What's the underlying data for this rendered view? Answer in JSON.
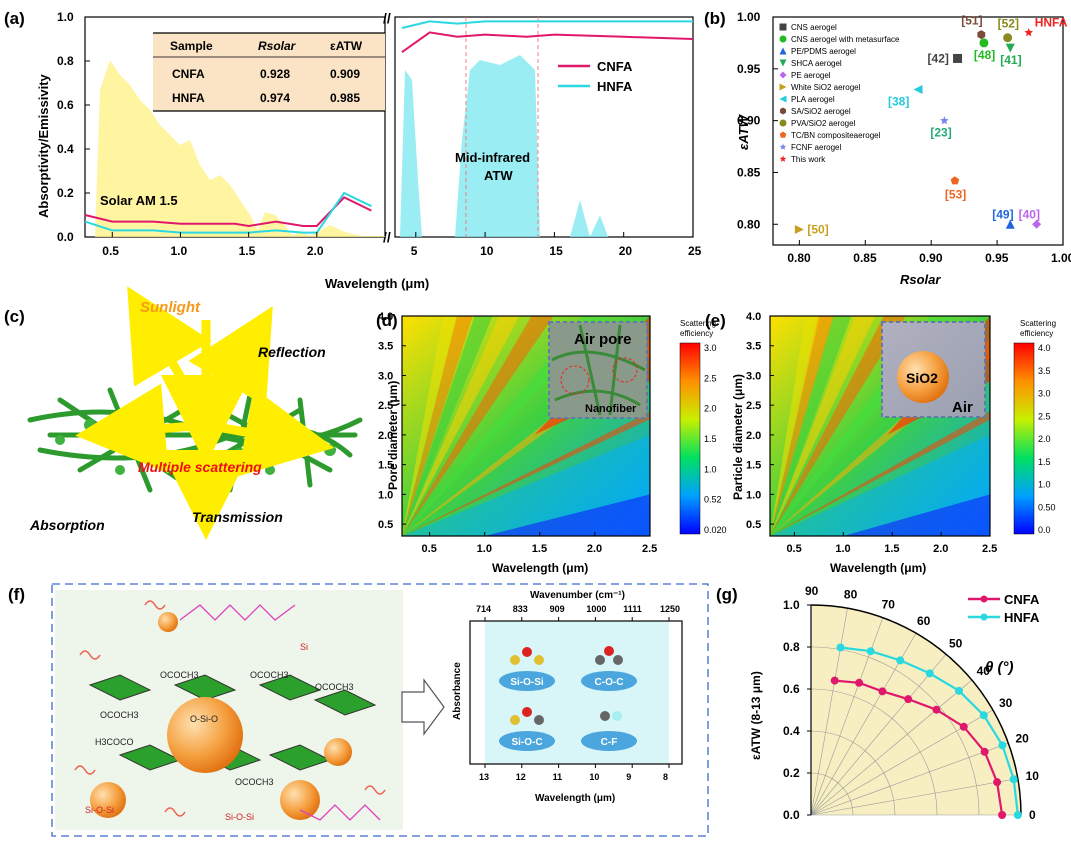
{
  "panels": {
    "a": {
      "label": "(a)",
      "ylabel": "Absorptivity/Emissivity",
      "xlabel": "Wavelength (μm)",
      "yticks": [
        "0.0",
        "0.2",
        "0.4",
        "0.6",
        "0.8",
        "1.0"
      ],
      "xticks_left": [
        "0.5",
        "1.0",
        "1.5",
        "2.0"
      ],
      "xticks_right": [
        "5",
        "10",
        "15",
        "20",
        "25"
      ],
      "solar_label": "Solar AM 1.5",
      "atw_label_1": "Mid-infrared",
      "atw_label_2": "ATW",
      "legend": [
        {
          "name": "CNFA",
          "color": "#e0186c"
        },
        {
          "name": "HNFA",
          "color": "#2ad8e0"
        }
      ],
      "table": {
        "headers": [
          "Sample",
          "Rsolar",
          "εATW"
        ],
        "rows": [
          [
            "CNFA",
            "0.928",
            "0.909"
          ],
          [
            "HNFA",
            "0.974",
            "0.985"
          ]
        ]
      }
    },
    "b": {
      "label": "(b)",
      "xlabel": "Rsolar",
      "ylabel": "εATW",
      "xticks": [
        "0.80",
        "0.85",
        "0.90",
        "0.95",
        "1.00"
      ],
      "yticks": [
        "0.80",
        "0.85",
        "0.90",
        "0.95",
        "1.00"
      ],
      "legend": [
        {
          "name": "CNS aerogel",
          "color": "#444444",
          "shape": "square"
        },
        {
          "name": "CNS aerogel with metasurface",
          "color": "#22bb22",
          "shape": "circle"
        },
        {
          "name": "PE/PDMS aerogel",
          "color": "#2266dd",
          "shape": "triangle"
        },
        {
          "name": "SHCA aerogel",
          "color": "#22aa55",
          "shape": "tridown"
        },
        {
          "name": "PE aerogel",
          "color": "#bb66ee",
          "shape": "diamond"
        },
        {
          "name": "White SiO2 aerogel",
          "color": "#c8a020",
          "shape": "triright"
        },
        {
          "name": "PLA aerogel",
          "color": "#22ccdd",
          "shape": "trileft"
        },
        {
          "name": "SA/SiO2 aerogel",
          "color": "#7a4a3a",
          "shape": "hexagon"
        },
        {
          "name": "PVA/SiO2 aerogel",
          "color": "#8a8a20",
          "shape": "circle"
        },
        {
          "name": "TC/BN compositeaerogel",
          "color": "#ee6622",
          "shape": "pentagon"
        },
        {
          "name": "FCNF aerogel",
          "color": "#7788ee",
          "shape": "star"
        },
        {
          "name": "This work",
          "color": "#ee2222",
          "shape": "star"
        }
      ],
      "points_labels": [
        "[51]",
        "[52]",
        "HNFA",
        "[42]",
        "[48]",
        "[41]",
        "[38]",
        "[23]",
        "[53]",
        "[49]",
        "[40]",
        "[50]"
      ]
    },
    "c": {
      "label": "(c)",
      "sunlight": "Sunlight",
      "reflection": "Reflection",
      "multiple": "Multiple scattering",
      "absorption": "Absorption",
      "transmission": "Transmission"
    },
    "d": {
      "label": "(d)",
      "ylabel": "Pore diameter (μm)",
      "xlabel": "Wavelength (μm)",
      "inset_top": "Air pore",
      "inset_bottom": "Nanofiber",
      "colorbar_title_1": "Scattering",
      "colorbar_title_2": "efficiency",
      "colorbar_ticks": [
        "3.0",
        "2.5",
        "2.0",
        "1.5",
        "1.0",
        "0.52",
        "0.020"
      ],
      "yticks": [
        "0.5",
        "1.0",
        "1.5",
        "2.0",
        "2.5",
        "3.0",
        "3.5",
        "4.0"
      ],
      "xticks": [
        "0.5",
        "1.0",
        "1.5",
        "2.0",
        "2.5"
      ]
    },
    "e": {
      "label": "(e)",
      "ylabel": "Particle diameter (μm)",
      "xlabel": "Wavelength (μm)",
      "inset_sphere": "SiO2",
      "inset_air": "Air",
      "colorbar_title_1": "Scattering",
      "colorbar_title_2": "efficiency",
      "colorbar_ticks": [
        "4.0",
        "3.5",
        "3.0",
        "2.5",
        "2.0",
        "1.5",
        "1.0",
        "0.50",
        "0.0"
      ],
      "yticks": [
        "0.5",
        "1.0",
        "1.5",
        "2.0",
        "2.5",
        "3.0",
        "3.5",
        "4.0"
      ],
      "xticks": [
        "0.5",
        "1.0",
        "1.5",
        "2.0",
        "2.5"
      ]
    },
    "f": {
      "label": "(f)",
      "spec_top_title": "Wavenumber (cm⁻¹)",
      "spec_top_ticks": [
        "714",
        "833",
        "909",
        "1000",
        "1111",
        "1250"
      ],
      "spec_bottom_title": "Wavelength (μm)",
      "spec_bottom_ticks": [
        "13",
        "12",
        "11",
        "10",
        "9",
        "8"
      ],
      "spec_ylabel": "Absorbance",
      "bonds": [
        "Si-O-Si",
        "C-O-C",
        "Si-O-C",
        "C-F"
      ]
    },
    "g": {
      "label": "(g)",
      "ylabel": "εATW (8-13 μm)",
      "theta_label": "θ  (°)",
      "rticks": [
        "0.0",
        "0.2",
        "0.4",
        "0.6",
        "0.8",
        "1.0"
      ],
      "angle_ticks": [
        "0",
        "10",
        "20",
        "30",
        "40",
        "50",
        "60",
        "70",
        "80",
        "90"
      ],
      "legend": [
        {
          "name": "CNFA",
          "color": "#e0186c"
        },
        {
          "name": "HNFA",
          "color": "#2ad8e0"
        }
      ]
    }
  },
  "chart_data": [
    {
      "type": "line",
      "title": "",
      "xlabel": "Wavelength (μm)",
      "ylabel": "Absorptivity/Emissivity",
      "ylim": [
        0,
        1.0
      ],
      "x_break": [
        2.5,
        4
      ],
      "series": [
        {
          "name": "CNFA",
          "x": [
            0.3,
            0.5,
            0.8,
            1.0,
            1.2,
            1.4,
            1.5,
            1.7,
            1.9,
            2.0,
            2.2,
            2.4,
            4,
            6,
            8,
            10,
            13,
            15,
            20,
            25
          ],
          "y": [
            0.1,
            0.07,
            0.07,
            0.06,
            0.06,
            0.06,
            0.05,
            0.07,
            0.05,
            0.05,
            0.18,
            0.12,
            0.84,
            0.93,
            0.91,
            0.92,
            0.91,
            0.92,
            0.91,
            0.9
          ]
        },
        {
          "name": "HNFA",
          "x": [
            0.3,
            0.5,
            0.8,
            1.0,
            1.2,
            1.4,
            1.5,
            1.7,
            1.9,
            2.0,
            2.2,
            2.4,
            4,
            6,
            8,
            10,
            13,
            15,
            20,
            25
          ],
          "y": [
            0.07,
            0.03,
            0.03,
            0.02,
            0.02,
            0.02,
            0.02,
            0.03,
            0.02,
            0.02,
            0.2,
            0.14,
            0.95,
            0.98,
            0.97,
            0.98,
            0.98,
            0.98,
            0.98,
            0.98
          ]
        }
      ],
      "table": [
        {
          "sample": "CNFA",
          "Rsolar": 0.928,
          "eATW": 0.909
        },
        {
          "sample": "HNFA",
          "Rsolar": 0.974,
          "eATW": 0.985
        }
      ]
    },
    {
      "type": "scatter",
      "xlabel": "Rsolar",
      "ylabel": "εATW",
      "xlim": [
        0.78,
        1.0
      ],
      "ylim": [
        0.78,
        1.0
      ],
      "points": [
        {
          "label": "[42]",
          "name": "CNS aerogel",
          "x": 0.92,
          "y": 0.96
        },
        {
          "label": "[48]",
          "name": "CNS aerogel with metasurface",
          "x": 0.94,
          "y": 0.975
        },
        {
          "label": "[49]",
          "name": "PE/PDMS aerogel",
          "x": 0.96,
          "y": 0.8
        },
        {
          "label": "[41]",
          "name": "SHCA aerogel",
          "x": 0.96,
          "y": 0.97
        },
        {
          "label": "[40]",
          "name": "PE aerogel",
          "x": 0.98,
          "y": 0.8
        },
        {
          "label": "[50]",
          "name": "White SiO2 aerogel",
          "x": 0.8,
          "y": 0.795
        },
        {
          "label": "[38]",
          "name": "PLA aerogel",
          "x": 0.89,
          "y": 0.93
        },
        {
          "label": "[51]",
          "name": "SA/SiO2 aerogel",
          "x": 0.938,
          "y": 0.983
        },
        {
          "label": "[52]",
          "name": "PVA/SiO2 aerogel",
          "x": 0.958,
          "y": 0.98
        },
        {
          "label": "[53]",
          "name": "TC/BN compositeaerogel",
          "x": 0.918,
          "y": 0.842
        },
        {
          "label": "[23]",
          "name": "FCNF aerogel",
          "x": 0.91,
          "y": 0.9
        },
        {
          "label": "HNFA",
          "name": "This work",
          "x": 0.974,
          "y": 0.985
        }
      ]
    },
    {
      "type": "heatmap",
      "xlabel": "Wavelength (μm)",
      "ylabel": "Pore diameter (μm)",
      "xlim": [
        0.25,
        2.5
      ],
      "ylim": [
        0.3,
        4.0
      ],
      "zlim": [
        0.02,
        3.1
      ]
    },
    {
      "type": "heatmap",
      "xlabel": "Wavelength (μm)",
      "ylabel": "Particle diameter (μm)",
      "xlim": [
        0.25,
        2.5
      ],
      "ylim": [
        0.3,
        4.0
      ],
      "zlim": [
        0.0,
        4.0
      ]
    },
    {
      "type": "line",
      "title": "",
      "ylabel": "εATW (8-13 μm)",
      "xlabel": "θ (°)",
      "polar": true,
      "theta": [
        0,
        10,
        20,
        30,
        40,
        50,
        60,
        70,
        80
      ],
      "series": [
        {
          "name": "CNFA",
          "values": [
            0.91,
            0.9,
            0.88,
            0.84,
            0.78,
            0.72,
            0.68,
            0.67,
            0.65
          ]
        },
        {
          "name": "HNFA",
          "values": [
            0.985,
            0.98,
            0.97,
            0.95,
            0.92,
            0.88,
            0.85,
            0.83,
            0.81
          ]
        }
      ]
    }
  ]
}
